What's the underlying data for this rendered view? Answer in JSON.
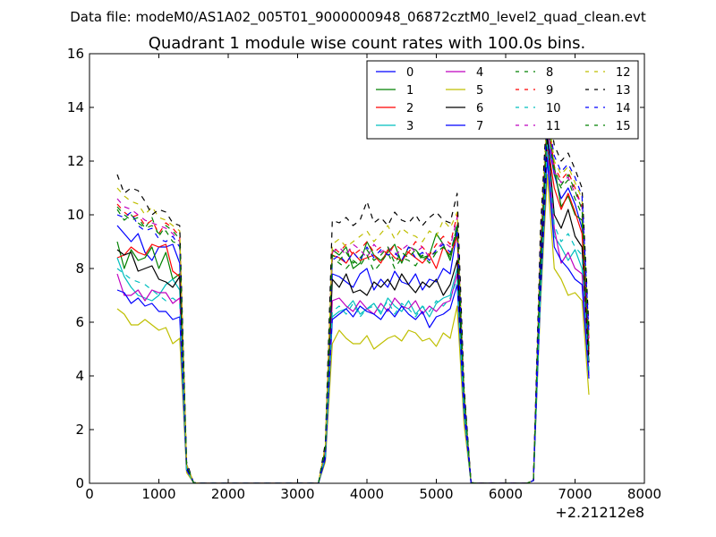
{
  "chart_data": {
    "type": "line",
    "suptitle": "Data file: modeM0/AS1A02_005T01_9000000948_06872cztM0_level2_quad_clean.evt",
    "title": "Quadrant 1 module wise count rates with 100.0s bins.",
    "xlabel": "",
    "ylabel": "",
    "x_offset_label": "+2.21212e8",
    "xlim": [
      0,
      8000
    ],
    "ylim": [
      0,
      16
    ],
    "xticks": [
      0,
      1000,
      2000,
      3000,
      4000,
      5000,
      6000,
      7000,
      8000
    ],
    "yticks": [
      0,
      2,
      4,
      6,
      8,
      10,
      12,
      14,
      16
    ],
    "legend_position": "top-right",
    "grid": false,
    "x": [
      400,
      500,
      600,
      700,
      800,
      900,
      1000,
      1100,
      1200,
      1300,
      1400,
      1500,
      1600,
      1700,
      1800,
      1900,
      2000,
      2100,
      2200,
      2300,
      2400,
      2500,
      2600,
      2700,
      2800,
      2900,
      3000,
      3100,
      3200,
      3300,
      3400,
      3500,
      3600,
      3700,
      3800,
      3900,
      4000,
      4100,
      4200,
      4300,
      4400,
      4500,
      4600,
      4700,
      4800,
      4900,
      5000,
      5100,
      5200,
      5300,
      5400,
      5500,
      5600,
      5700,
      5800,
      5900,
      6000,
      6100,
      6200,
      6300,
      6400,
      6500,
      6600,
      6700,
      6800,
      6900,
      7000,
      7100,
      7200
    ],
    "series": [
      {
        "name": "0",
        "color": "#0000ff",
        "dash": "solid",
        "values": [
          9.6,
          9.3,
          9.0,
          9.3,
          8.6,
          8.3,
          8.8,
          8.8,
          8.9,
          8.2,
          0.6,
          0.02,
          0,
          0,
          0,
          0,
          0,
          0,
          0,
          0,
          0,
          0,
          0,
          0,
          0,
          0,
          0,
          0,
          0,
          0,
          1.2,
          7.8,
          7.7,
          7.5,
          7.3,
          7.8,
          8.0,
          7.2,
          7.6,
          7.3,
          7.9,
          7.5,
          7.4,
          7.8,
          7.2,
          7.6,
          7.5,
          8.0,
          7.8,
          9.4,
          3.0,
          0.02,
          0,
          0,
          0,
          0,
          0,
          0,
          0,
          0,
          0.1,
          7.8,
          12.9,
          11.5,
          10.6,
          11.0,
          10.4,
          9.5,
          5.0
        ]
      },
      {
        "name": "1",
        "color": "#008000",
        "dash": "solid",
        "values": [
          9.0,
          8.0,
          8.7,
          8.3,
          8.4,
          8.8,
          8.0,
          8.6,
          7.6,
          7.8,
          0.6,
          0.02,
          0,
          0,
          0,
          0,
          0,
          0,
          0,
          0,
          0,
          0,
          0,
          0,
          0,
          0,
          0,
          0,
          0,
          0,
          1.3,
          8.7,
          8.5,
          8.8,
          8.0,
          8.2,
          9.0,
          8.5,
          8.3,
          8.6,
          8.9,
          8.2,
          8.8,
          8.7,
          8.4,
          8.5,
          9.3,
          8.9,
          8.3,
          9.5,
          3.2,
          0.02,
          0,
          0,
          0,
          0,
          0,
          0,
          0,
          0,
          0.1,
          7.5,
          13.5,
          11.8,
          10.3,
          10.7,
          10.0,
          9.8,
          4.8
        ]
      },
      {
        "name": "2",
        "color": "#ff0000",
        "dash": "solid",
        "values": [
          8.4,
          8.5,
          8.8,
          8.6,
          8.5,
          8.9,
          8.8,
          8.9,
          7.9,
          7.7,
          0.6,
          0.02,
          0,
          0,
          0,
          0,
          0,
          0,
          0,
          0,
          0,
          0,
          0,
          0,
          0,
          0,
          0,
          0,
          0,
          0,
          1.2,
          8.5,
          8.4,
          8.2,
          8.6,
          8.3,
          8.4,
          8.5,
          8.2,
          8.7,
          8.4,
          8.3,
          8.6,
          8.4,
          8.2,
          8.5,
          8.0,
          8.8,
          8.5,
          9.2,
          3.1,
          0.02,
          0,
          0,
          0,
          0,
          0,
          0,
          0,
          0,
          0.1,
          8.1,
          12.7,
          11.0,
          10.2,
          10.8,
          10.1,
          9.3,
          4.9
        ]
      },
      {
        "name": "3",
        "color": "#00bfbf",
        "dash": "solid",
        "values": [
          8.4,
          7.7,
          7.3,
          7.0,
          6.9,
          6.8,
          7.0,
          7.4,
          7.6,
          7.2,
          0.5,
          0.02,
          0,
          0,
          0,
          0,
          0,
          0,
          0,
          0,
          0,
          0,
          0,
          0,
          0,
          0,
          0,
          0,
          0,
          0,
          1.0,
          6.2,
          6.4,
          6.5,
          6.8,
          6.3,
          6.5,
          6.7,
          6.3,
          6.9,
          6.6,
          6.4,
          6.8,
          6.3,
          6.6,
          6.2,
          6.7,
          6.9,
          7.0,
          8.0,
          2.8,
          0.02,
          0,
          0,
          0,
          0,
          0,
          0,
          0,
          0,
          0.1,
          7.2,
          12.3,
          9.2,
          8.8,
          8.3,
          8.7,
          8.0,
          4.1
        ]
      },
      {
        "name": "4",
        "color": "#bf00bf",
        "dash": "solid",
        "values": [
          7.8,
          7.0,
          7.0,
          7.2,
          6.8,
          7.2,
          7.1,
          7.1,
          6.7,
          6.9,
          0.5,
          0.02,
          0,
          0,
          0,
          0,
          0,
          0,
          0,
          0,
          0,
          0,
          0,
          0,
          0,
          0,
          0,
          0,
          0,
          0,
          1.0,
          6.8,
          6.9,
          6.6,
          6.4,
          6.8,
          6.5,
          6.3,
          6.7,
          6.4,
          6.9,
          6.6,
          6.5,
          6.8,
          6.3,
          6.6,
          6.4,
          6.7,
          6.8,
          7.8,
          2.7,
          0.02,
          0,
          0,
          0,
          0,
          0,
          0,
          0,
          0,
          0.1,
          7.3,
          12.4,
          9.5,
          8.2,
          8.6,
          8.0,
          7.8,
          4.0
        ]
      },
      {
        "name": "5",
        "color": "#bfbf00",
        "dash": "solid",
        "values": [
          6.5,
          6.3,
          5.9,
          5.9,
          6.1,
          5.9,
          5.7,
          5.8,
          5.2,
          5.4,
          0.4,
          0.02,
          0,
          0,
          0,
          0,
          0,
          0,
          0,
          0,
          0,
          0,
          0,
          0,
          0,
          0,
          0,
          0,
          0,
          0,
          0.8,
          5.2,
          5.7,
          5.4,
          5.2,
          5.2,
          5.5,
          5.0,
          5.2,
          5.4,
          5.5,
          5.3,
          5.7,
          5.6,
          5.3,
          5.4,
          5.1,
          5.6,
          5.4,
          6.6,
          2.2,
          0.02,
          0,
          0,
          0,
          0,
          0,
          0,
          0,
          0,
          0.1,
          6.6,
          11.5,
          8.0,
          7.6,
          7.0,
          7.1,
          6.8,
          3.3
        ]
      },
      {
        "name": "6",
        "color": "#000000",
        "dash": "solid",
        "values": [
          8.7,
          8.5,
          8.6,
          7.9,
          8.0,
          8.1,
          7.6,
          7.5,
          7.3,
          7.7,
          0.6,
          0.02,
          0,
          0,
          0,
          0,
          0,
          0,
          0,
          0,
          0,
          0,
          0,
          0,
          0,
          0,
          0,
          0,
          0,
          0,
          1.1,
          7.6,
          7.3,
          7.8,
          7.1,
          7.2,
          7.0,
          7.5,
          7.3,
          7.6,
          7.2,
          7.8,
          7.4,
          7.1,
          7.5,
          7.3,
          7.6,
          7.0,
          7.4,
          8.3,
          2.9,
          0.02,
          0,
          0,
          0,
          0,
          0,
          0,
          0,
          0,
          0.1,
          7.5,
          13.0,
          10.0,
          9.5,
          10.2,
          9.2,
          8.8,
          4.5
        ]
      },
      {
        "name": "7",
        "color": "#0000ff",
        "dash": "solid",
        "values": [
          7.2,
          7.1,
          6.7,
          6.9,
          6.6,
          6.7,
          6.4,
          6.4,
          6.1,
          6.2,
          0.5,
          0.02,
          0,
          0,
          0,
          0,
          0,
          0,
          0,
          0,
          0,
          0,
          0,
          0,
          0,
          0,
          0,
          0,
          0,
          0,
          0.9,
          6.1,
          6.3,
          6.5,
          6.2,
          6.6,
          6.4,
          6.3,
          6.1,
          6.5,
          6.2,
          6.6,
          6.3,
          6.1,
          6.4,
          5.8,
          6.2,
          6.3,
          6.5,
          7.4,
          2.6,
          0.02,
          0,
          0,
          0,
          0,
          0,
          0,
          0,
          0,
          0.1,
          6.9,
          12.1,
          8.8,
          8.3,
          8.0,
          7.6,
          7.4,
          3.9
        ]
      },
      {
        "name": "8",
        "color": "#008000",
        "dash": "dashed",
        "values": [
          10.2,
          9.8,
          10.0,
          9.7,
          9.5,
          9.9,
          9.2,
          9.6,
          9.4,
          9.1,
          0.7,
          0.02,
          0,
          0,
          0,
          0,
          0,
          0,
          0,
          0,
          0,
          0,
          0,
          0,
          0,
          0,
          0,
          0,
          0,
          0,
          1.3,
          8.4,
          8.2,
          8.0,
          8.3,
          8.1,
          8.5,
          7.9,
          8.2,
          8.6,
          8.0,
          8.4,
          8.3,
          8.1,
          8.5,
          8.2,
          8.6,
          8.8,
          8.4,
          9.7,
          3.3,
          0.02,
          0,
          0,
          0,
          0,
          0,
          0,
          0,
          0,
          0.1,
          8.4,
          13.6,
          11.5,
          11.0,
          11.3,
          10.6,
          10.0,
          5.2
        ]
      },
      {
        "name": "9",
        "color": "#ff0000",
        "dash": "dashed",
        "values": [
          10.4,
          10.1,
          9.9,
          10.0,
          9.6,
          9.8,
          9.3,
          9.7,
          9.5,
          9.2,
          0.7,
          0.02,
          0,
          0,
          0,
          0,
          0,
          0,
          0,
          0,
          0,
          0,
          0,
          0,
          0,
          0,
          0,
          0,
          0,
          0,
          1.3,
          8.8,
          8.6,
          8.9,
          8.5,
          8.7,
          9.0,
          8.6,
          8.8,
          8.5,
          8.9,
          8.7,
          8.6,
          9.0,
          8.8,
          8.5,
          8.9,
          9.2,
          8.9,
          10.0,
          3.4,
          0.02,
          0,
          0,
          0,
          0,
          0,
          0,
          0,
          0,
          0.1,
          8.8,
          13.8,
          11.8,
          11.3,
          11.6,
          11.0,
          10.3,
          5.4
        ]
      },
      {
        "name": "10",
        "color": "#00bfbf",
        "dash": "dashed",
        "values": [
          8.0,
          7.8,
          7.6,
          7.5,
          7.4,
          7.2,
          7.0,
          6.8,
          6.9,
          6.7,
          0.5,
          0.02,
          0,
          0,
          0,
          0,
          0,
          0,
          0,
          0,
          0,
          0,
          0,
          0,
          0,
          0,
          0,
          0,
          0,
          0,
          1.0,
          6.4,
          6.6,
          6.3,
          6.7,
          6.2,
          6.5,
          6.6,
          6.4,
          6.8,
          6.3,
          6.7,
          6.5,
          6.2,
          6.6,
          6.4,
          6.8,
          6.6,
          6.9,
          7.6,
          2.7,
          0.02,
          0,
          0,
          0,
          0,
          0,
          0,
          0,
          0,
          0.1,
          7.0,
          12.6,
          9.6,
          9.0,
          9.3,
          8.8,
          8.5,
          4.2
        ]
      },
      {
        "name": "11",
        "color": "#bf00bf",
        "dash": "dashed",
        "values": [
          10.6,
          10.3,
          10.2,
          10.0,
          9.8,
          9.7,
          9.6,
          9.5,
          9.3,
          9.0,
          0.7,
          0.02,
          0,
          0,
          0,
          0,
          0,
          0,
          0,
          0,
          0,
          0,
          0,
          0,
          0,
          0,
          0,
          0,
          0,
          0,
          1.3,
          8.6,
          8.8,
          8.5,
          8.9,
          8.7,
          8.4,
          8.9,
          8.6,
          8.8,
          8.5,
          8.7,
          8.9,
          8.6,
          8.8,
          8.4,
          8.7,
          9.0,
          8.8,
          9.9,
          3.4,
          0.02,
          0,
          0,
          0,
          0,
          0,
          0,
          0,
          0,
          0.1,
          8.6,
          13.3,
          11.6,
          11.2,
          11.4,
          10.8,
          10.4,
          5.3
        ]
      },
      {
        "name": "12",
        "color": "#bfbf00",
        "dash": "dashed",
        "values": [
          11.0,
          10.7,
          10.5,
          10.4,
          10.0,
          10.3,
          9.9,
          9.8,
          9.6,
          9.4,
          0.7,
          0.02,
          0,
          0,
          0,
          0,
          0,
          0,
          0,
          0,
          0,
          0,
          0,
          0,
          0,
          0,
          0,
          0,
          0,
          0,
          1.4,
          8.9,
          9.1,
          8.8,
          9.0,
          9.2,
          9.4,
          9.0,
          9.3,
          9.6,
          9.1,
          9.5,
          9.3,
          9.2,
          9.0,
          9.4,
          9.2,
          9.8,
          9.5,
          10.1,
          3.5,
          0.02,
          0,
          0,
          0,
          0,
          0,
          0,
          0,
          0,
          0.1,
          9.0,
          14.0,
          12.0,
          11.5,
          11.8,
          11.2,
          10.6,
          5.5
        ]
      },
      {
        "name": "13",
        "color": "#000000",
        "dash": "dashed",
        "values": [
          11.5,
          10.8,
          11.0,
          10.9,
          10.5,
          10.0,
          10.2,
          10.1,
          9.7,
          9.6,
          0.8,
          0.02,
          0,
          0,
          0,
          0,
          0,
          0,
          0,
          0,
          0,
          0,
          0,
          0,
          0,
          0,
          0,
          0,
          0,
          0,
          1.5,
          9.8,
          9.7,
          9.9,
          9.6,
          9.8,
          10.5,
          9.7,
          9.9,
          9.6,
          10.1,
          9.8,
          9.7,
          10.0,
          9.6,
          9.9,
          10.1,
          9.8,
          9.7,
          10.8,
          3.6,
          0.02,
          0,
          0,
          0,
          0,
          0,
          0,
          0,
          0,
          0.1,
          9.4,
          14.2,
          12.6,
          12.0,
          12.3,
          11.7,
          11.0,
          5.8
        ]
      },
      {
        "name": "14",
        "color": "#0000ff",
        "dash": "dashed",
        "values": [
          10.0,
          9.9,
          10.1,
          9.6,
          9.4,
          9.5,
          9.1,
          9.0,
          9.2,
          8.8,
          0.7,
          0.02,
          0,
          0,
          0,
          0,
          0,
          0,
          0,
          0,
          0,
          0,
          0,
          0,
          0,
          0,
          0,
          0,
          0,
          0,
          1.2,
          8.3,
          8.5,
          8.2,
          8.6,
          8.3,
          8.8,
          8.4,
          8.7,
          8.5,
          8.6,
          8.3,
          8.8,
          8.4,
          8.6,
          8.3,
          8.7,
          8.9,
          8.6,
          9.5,
          3.2,
          0.02,
          0,
          0,
          0,
          0,
          0,
          0,
          0,
          0,
          0.1,
          8.5,
          13.7,
          12.2,
          11.6,
          11.9,
          11.4,
          10.7,
          5.6
        ]
      },
      {
        "name": "15",
        "color": "#008000",
        "dash": "dashed",
        "values": [
          10.3,
          10.0,
          9.8,
          9.9,
          9.5,
          9.6,
          9.3,
          9.4,
          9.0,
          8.9,
          0.7,
          0.02,
          0,
          0,
          0,
          0,
          0,
          0,
          0,
          0,
          0,
          0,
          0,
          0,
          0,
          0,
          0,
          0,
          0,
          0,
          1.3,
          8.5,
          8.3,
          8.6,
          8.2,
          8.4,
          8.7,
          8.3,
          8.5,
          8.8,
          8.2,
          8.6,
          8.4,
          8.7,
          8.3,
          8.5,
          8.6,
          8.8,
          8.5,
          9.6,
          3.3,
          0.02,
          0,
          0,
          0,
          0,
          0,
          0,
          0,
          0,
          0.1,
          8.2,
          13.4,
          11.7,
          11.1,
          11.5,
          10.9,
          10.2,
          5.1
        ]
      }
    ]
  }
}
